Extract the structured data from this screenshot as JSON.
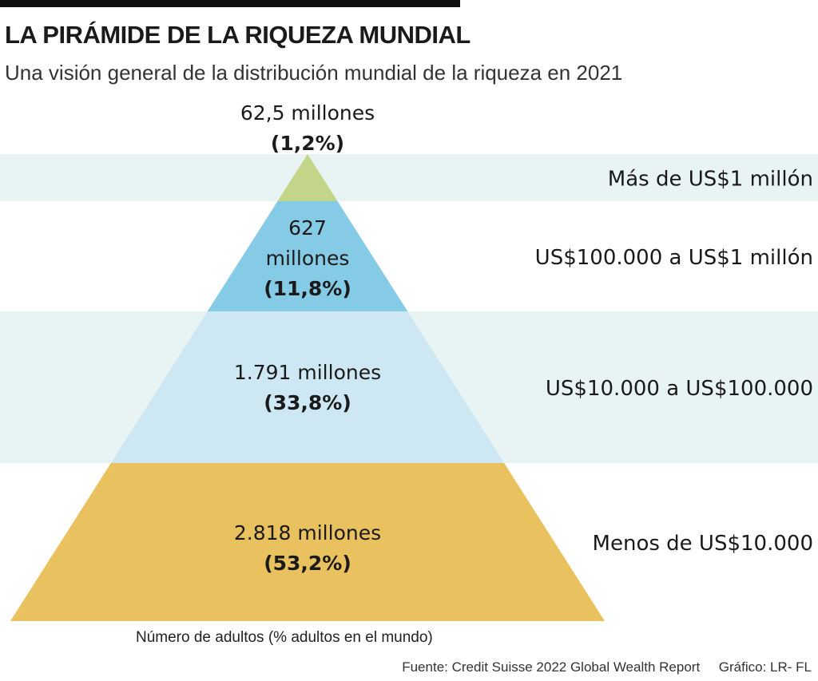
{
  "title": "LA PIRÁMIDE DE LA RIQUEZA MUNDIAL",
  "subtitle": "Una visión general de la distribución mundial de la riqueza en 2021",
  "chart_data": {
    "type": "pyramid",
    "xlabel": "Número de adultos (% adultos en el mundo)",
    "levels": [
      {
        "category": "Más de US$1 millón",
        "count_label": "62,5 millones",
        "pct_label": "(1,2%)",
        "adults_millions": 62.5,
        "percent": 1.2,
        "color": "#c3d588",
        "band": "#e8f3f3"
      },
      {
        "category": "US$100.000 a US$1 millón",
        "count_label": "627 millones",
        "count_lines": [
          "627",
          "millones"
        ],
        "pct_label": "(11,8%)",
        "adults_millions": 627,
        "percent": 11.8,
        "color": "#86cbe5",
        "band": "#ffffff"
      },
      {
        "category": "US$10.000 a US$100.000",
        "count_label": "1.791 millones",
        "pct_label": "(33,8%)",
        "adults_millions": 1791,
        "percent": 33.8,
        "color": "#cde8f2",
        "band": "#e8f3f3"
      },
      {
        "category": "Menos de US$10.000",
        "count_label": "2.818 millones",
        "pct_label": "(53,2%)",
        "adults_millions": 2818,
        "percent": 53.2,
        "color": "#e9c15e",
        "band": "#ffffff"
      }
    ]
  },
  "footer": {
    "source": "Fuente: Credit Suisse 2022 Global Wealth Report",
    "credit": "Gráfico: LR- FL"
  }
}
